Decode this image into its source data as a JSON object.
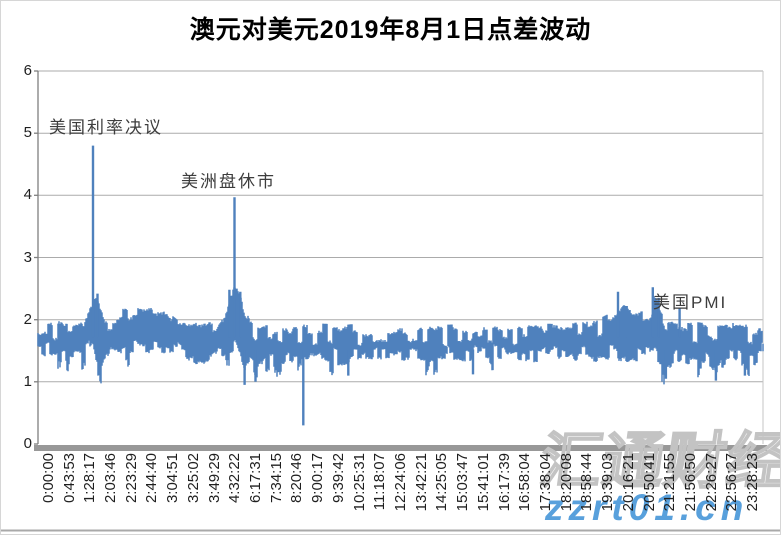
{
  "page": {
    "watermark_cn": "汇通财经",
    "watermark_url": "zzrt01.cn"
  },
  "chart_data": {
    "type": "line",
    "title": "澳元对美元2019年8月1日点差波动",
    "xlabel": "",
    "ylabel": "",
    "ylim": [
      0,
      6
    ],
    "yticks": [
      "0",
      "1",
      "2",
      "3",
      "4",
      "5",
      "6"
    ],
    "grid": true,
    "legend": "none",
    "series": [
      {
        "name": "点差",
        "color": "#4f81bd"
      }
    ],
    "x_tick_labels": [
      "0:00:00",
      "0:43:53",
      "1:28:17",
      "2:03:46",
      "2:23:29",
      "2:44:40",
      "3:04:51",
      "3:25:02",
      "3:49:29",
      "4:32:22",
      "6:17:31",
      "7:34:15",
      "8:20:46",
      "9:00:17",
      "9:39:42",
      "10:25:31",
      "11:18:07",
      "12:24:06",
      "13:42:21",
      "14:25:05",
      "15:03:47",
      "15:41:01",
      "16:17:39",
      "16:58:04",
      "17:38:04",
      "18:20:08",
      "18:58:44",
      "19:39:03",
      "20:16:21",
      "20:50:41",
      "21:21:55",
      "21:56:50",
      "22:26:27",
      "22:56:27",
      "23:28:23"
    ],
    "annotations": [
      {
        "text": "美国利率决议",
        "t": 0.015,
        "value": 5.18
      },
      {
        "text": "美洲盘休市",
        "t": 0.197,
        "value": 4.31
      },
      {
        "text": "美国PMI",
        "t": 0.848,
        "value": 2.36
      }
    ],
    "band_envelope": [
      [
        0.0,
        1.4,
        1.95
      ],
      [
        0.05,
        1.38,
        1.96
      ],
      [
        0.062,
        1.4,
        2.02
      ],
      [
        0.07,
        1.48,
        2.25
      ],
      [
        0.076,
        1.55,
        2.35
      ],
      [
        0.081,
        1.3,
        2.38
      ],
      [
        0.086,
        1.15,
        2.2
      ],
      [
        0.093,
        1.38,
        2.02
      ],
      [
        0.105,
        1.42,
        2.0
      ],
      [
        0.115,
        1.42,
        2.15
      ],
      [
        0.13,
        1.46,
        2.2
      ],
      [
        0.16,
        1.47,
        2.18
      ],
      [
        0.178,
        1.44,
        2.1
      ],
      [
        0.192,
        1.4,
        1.97
      ],
      [
        0.21,
        1.3,
        1.94
      ],
      [
        0.228,
        1.27,
        1.92
      ],
      [
        0.245,
        1.35,
        1.96
      ],
      [
        0.258,
        1.42,
        2.15
      ],
      [
        0.266,
        1.45,
        2.5
      ],
      [
        0.272,
        1.48,
        2.58
      ],
      [
        0.279,
        1.32,
        2.42
      ],
      [
        0.285,
        1.12,
        2.15
      ],
      [
        0.293,
        1.25,
        1.98
      ],
      [
        0.302,
        1.05,
        1.92
      ],
      [
        0.315,
        1.32,
        1.9
      ],
      [
        0.335,
        1.28,
        1.9
      ],
      [
        0.355,
        1.33,
        1.92
      ],
      [
        0.37,
        1.37,
        1.9
      ],
      [
        0.39,
        1.36,
        1.91
      ],
      [
        0.42,
        1.25,
        1.88
      ],
      [
        0.435,
        1.33,
        1.9
      ],
      [
        0.465,
        1.37,
        1.89
      ],
      [
        0.5,
        1.34,
        1.88
      ],
      [
        0.535,
        1.31,
        1.9
      ],
      [
        0.565,
        1.37,
        1.89
      ],
      [
        0.595,
        1.31,
        1.9
      ],
      [
        0.625,
        1.37,
        1.91
      ],
      [
        0.655,
        1.34,
        1.9
      ],
      [
        0.685,
        1.31,
        1.91
      ],
      [
        0.715,
        1.37,
        1.9
      ],
      [
        0.745,
        1.34,
        1.94
      ],
      [
        0.775,
        1.31,
        1.99
      ],
      [
        0.797,
        1.34,
        2.12
      ],
      [
        0.808,
        1.31,
        2.25
      ],
      [
        0.822,
        1.34,
        2.08
      ],
      [
        0.84,
        1.3,
        2.25
      ],
      [
        0.85,
        1.33,
        2.4
      ],
      [
        0.858,
        1.22,
        2.18
      ],
      [
        0.868,
        1.12,
        1.98
      ],
      [
        0.882,
        1.3,
        1.92
      ],
      [
        0.903,
        1.26,
        1.94
      ],
      [
        0.922,
        1.31,
        1.91
      ],
      [
        0.936,
        1.08,
        1.89
      ],
      [
        0.95,
        1.3,
        1.94
      ],
      [
        0.972,
        1.26,
        1.91
      ],
      [
        1.0,
        1.4,
        1.88
      ]
    ],
    "spikes": [
      {
        "t": 0.0759,
        "v": 4.8
      },
      {
        "t": 0.082,
        "v": 2.42
      },
      {
        "t": 0.264,
        "v": 2.48
      },
      {
        "t": 0.271,
        "v": 3.97
      },
      {
        "t": 0.279,
        "v": 2.45
      },
      {
        "t": 0.285,
        "v": 0.95
      },
      {
        "t": 0.3,
        "v": 1.0
      },
      {
        "t": 0.366,
        "v": 0.3
      },
      {
        "t": 0.428,
        "v": 1.1
      },
      {
        "t": 0.6,
        "v": 1.12
      },
      {
        "t": 0.8,
        "v": 2.45
      },
      {
        "t": 0.812,
        "v": 2.22
      },
      {
        "t": 0.848,
        "v": 2.52
      },
      {
        "t": 0.856,
        "v": 2.35
      },
      {
        "t": 0.866,
        "v": 1.05
      },
      {
        "t": 0.885,
        "v": 2.18
      },
      {
        "t": 0.935,
        "v": 1.02
      },
      {
        "t": 0.975,
        "v": 1.1
      }
    ],
    "colors": {
      "series": "#4f81bd",
      "gridline": "#ababab",
      "axis": "#7f7f7f",
      "axis_bar": "#989898",
      "watermark_url_blue": "#58a0dc"
    }
  }
}
